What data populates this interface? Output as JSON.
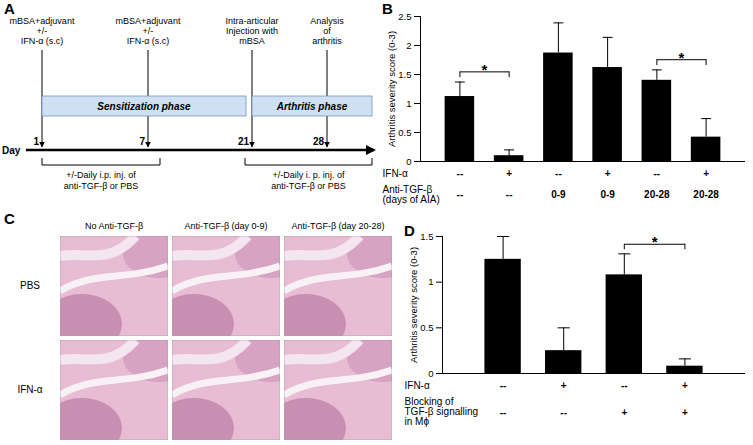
{
  "diagram": {
    "title": "A",
    "axis_label": "Day",
    "days": [
      1,
      7,
      21,
      28
    ],
    "events": [
      {
        "lines": [
          "mBSA+adjuvant",
          "+/-",
          "IFN-α (s.c)"
        ]
      },
      {
        "lines": [
          "mBSA+adjuvant",
          "+/-",
          "IFN-α (s.c)"
        ]
      },
      {
        "lines": [
          "Intra-articular",
          "Injection with",
          "mBSA"
        ]
      },
      {
        "lines": [
          "Analysis",
          "of",
          "arthritis"
        ]
      }
    ],
    "phases": [
      "Sensitization phase",
      "Arthritis phase"
    ],
    "treatments": [
      {
        "lines": [
          "+/-Daily i.p. inj. of",
          "anti-TGF-β or PBS"
        ]
      },
      {
        "lines": [
          "+/-Daily i. p. inj. of",
          "anti-TGF-β or PBS"
        ]
      }
    ]
  },
  "images": {
    "title": "C",
    "columns": [
      "No Anti-TGF-β",
      "Anti-TGF-β (day 0-9)",
      "Anti-TGF-β (day 20-28)"
    ],
    "rows": [
      "PBS",
      "IFN-α"
    ]
  },
  "chart_data": [
    {
      "type": "bar",
      "title": "B",
      "ylabel": "Arthritis severity score (0-3)",
      "categories": [
        null,
        null,
        null,
        null,
        null,
        null
      ],
      "values": [
        1.12,
        0.1,
        1.87,
        1.62,
        1.4,
        0.42
      ],
      "errors": [
        0.25,
        0.1,
        0.52,
        0.52,
        0.18,
        0.32
      ],
      "color": "#000000",
      "ylim": [
        0,
        2.5
      ],
      "yticks": [
        0,
        0.5,
        1,
        1.5,
        2,
        2.5
      ],
      "conditions": [
        {
          "label": "IFN-α",
          "values": [
            "--",
            "+",
            "--",
            "+",
            "--",
            "+"
          ]
        },
        {
          "label": "Anti-TGF-β (days of AIA)",
          "values": [
            "--",
            "--",
            "0-9",
            "0-9",
            "20-28",
            "20-28"
          ]
        }
      ],
      "significance": [
        {
          "from": 0,
          "to": 1,
          "label": "*"
        },
        {
          "from": 4,
          "to": 5,
          "label": "*"
        }
      ]
    },
    {
      "type": "bar",
      "title": "D",
      "ylabel": "Arthritis severity score (0-3)",
      "categories": [
        null,
        null,
        null,
        null
      ],
      "values": [
        1.25,
        0.25,
        1.08,
        0.08
      ],
      "errors": [
        0.25,
        0.25,
        0.23,
        0.08
      ],
      "color": "#000000",
      "ylim": [
        0,
        1.5
      ],
      "yticks": [
        0,
        0.5,
        1,
        1.5
      ],
      "conditions": [
        {
          "label": "IFN-α",
          "values": [
            "--",
            "+",
            "--",
            "+"
          ]
        },
        {
          "label": "Blocking of TGF-β signalling in Mϕ",
          "values": [
            "--",
            "--",
            "+",
            "+"
          ]
        }
      ],
      "significance": [
        {
          "from": 2,
          "to": 3,
          "label": "*"
        }
      ]
    }
  ]
}
